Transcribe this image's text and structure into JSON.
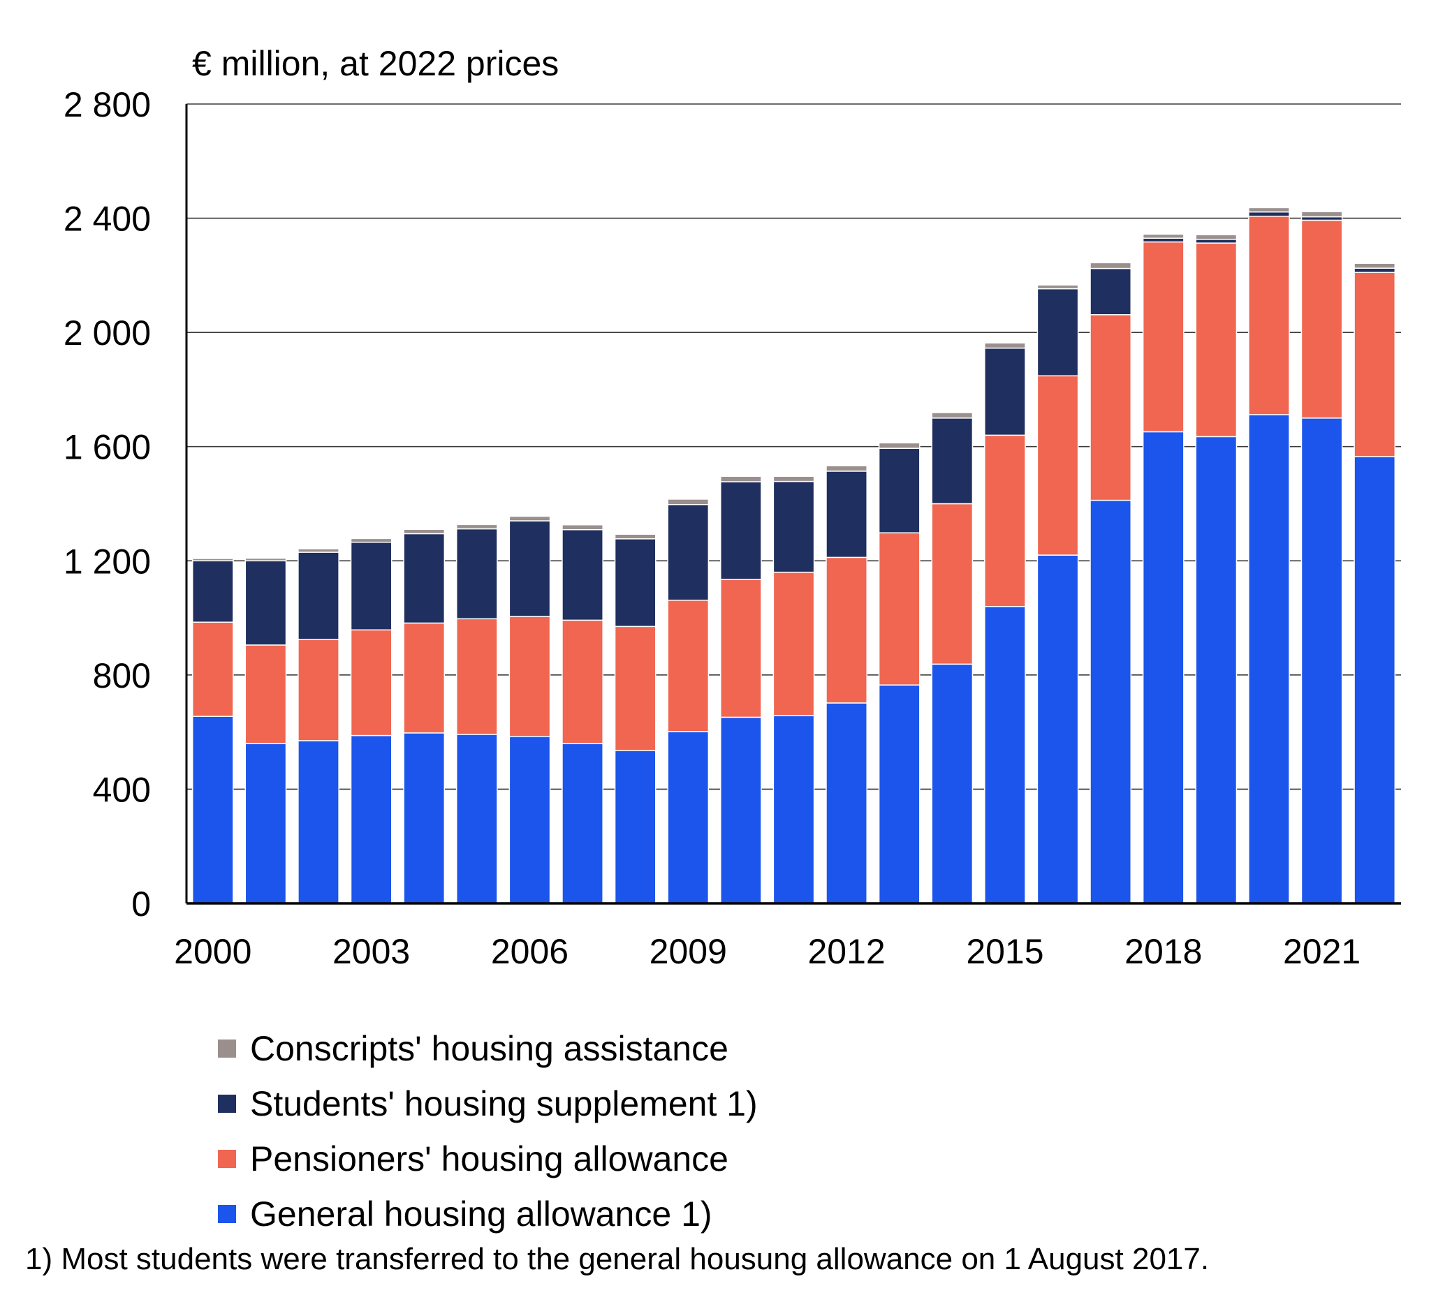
{
  "chart_data": {
    "type": "bar",
    "stacked": true,
    "ylabel": "€ million, at 2022 prices",
    "ylim": [
      0,
      2800
    ],
    "yticks": [
      0,
      400,
      800,
      1200,
      1600,
      2000,
      2400,
      2800
    ],
    "ytick_labels": [
      "0",
      "400",
      "800",
      "1 200",
      "1 600",
      "2 000",
      "2 400",
      "2 800"
    ],
    "grid": true,
    "categories": [
      "2000",
      "2001",
      "2002",
      "2003",
      "2004",
      "2005",
      "2006",
      "2007",
      "2008",
      "2009",
      "2010",
      "2011",
      "2012",
      "2013",
      "2014",
      "2015",
      "2016",
      "2017",
      "2018",
      "2019",
      "2020",
      "2021",
      "2022"
    ],
    "xtick_labels": [
      "2000",
      "2003",
      "2006",
      "2009",
      "2012",
      "2015",
      "2018",
      "2021"
    ],
    "series": [
      {
        "name": "General housing allowance 1)",
        "color": "#1c55eb",
        "values": [
          655,
          560,
          570,
          588,
          597,
          592,
          585,
          560,
          535,
          602,
          652,
          658,
          702,
          765,
          838,
          1040,
          1220,
          1412,
          1652,
          1635,
          1712,
          1700,
          1565
        ]
      },
      {
        "name": "Pensioners' housing allowance",
        "color": "#f06650",
        "values": [
          330,
          345,
          355,
          370,
          385,
          405,
          420,
          432,
          435,
          460,
          483,
          502,
          510,
          533,
          562,
          600,
          628,
          650,
          665,
          678,
          695,
          693,
          645
        ]
      },
      {
        "name": "Students' housing supplement 1)",
        "color": "#1f2f5f",
        "values": [
          215,
          295,
          305,
          307,
          313,
          315,
          335,
          317,
          307,
          335,
          342,
          318,
          302,
          296,
          300,
          305,
          305,
          162,
          13,
          13,
          15,
          12,
          15
        ]
      },
      {
        "name": "Conscripts' housing assistance",
        "color": "#9a8f8c",
        "values": [
          8,
          9,
          12,
          13,
          15,
          15,
          16,
          17,
          16,
          19,
          19,
          18,
          19,
          19,
          19,
          18,
          13,
          20,
          14,
          16,
          15,
          18,
          17
        ]
      }
    ],
    "legend_order": [
      "Conscripts' housing assistance",
      "Students' housing supplement 1)",
      "Pensioners' housing allowance",
      "General housing allowance 1)"
    ],
    "legend_position": "bottom-left"
  },
  "footnote": "1) Most students were transferred to the general housung allowance on 1 August 2017."
}
